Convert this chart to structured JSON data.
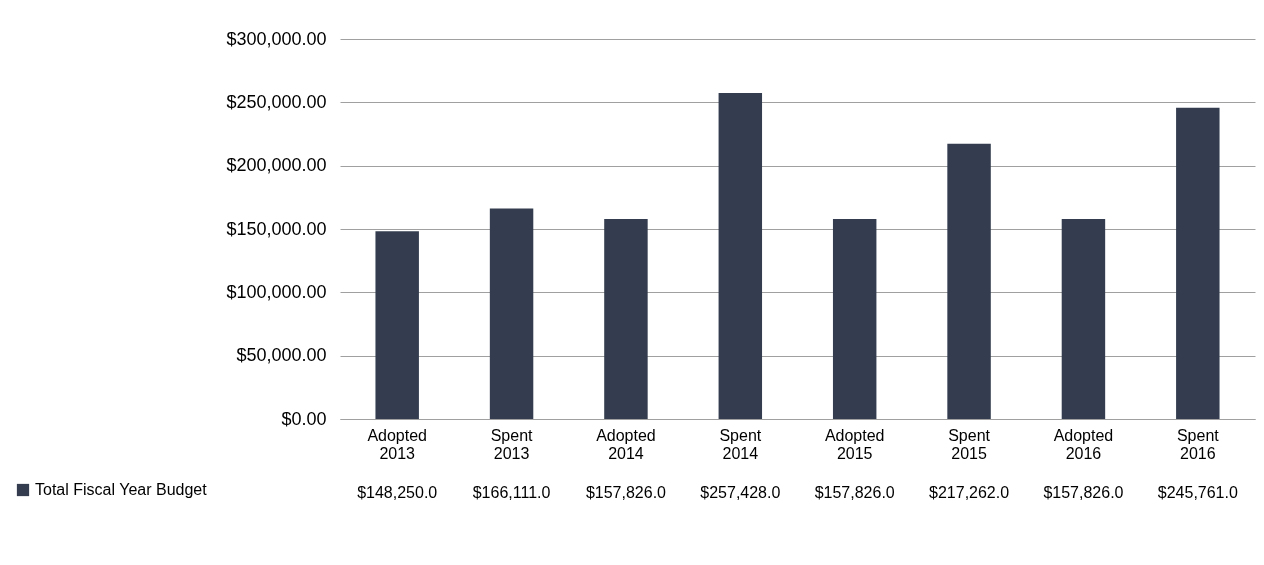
{
  "chart_data": {
    "type": "bar",
    "categories": [
      "Adopted 2013",
      "Spent 2013",
      "Adopted 2014",
      "Spent 2014",
      "Adopted 2015",
      "Spent 2015",
      "Adopted 2016",
      "Spent 2016"
    ],
    "series": [
      {
        "name": "Total Fiscal Year Budget",
        "color": "#333d4f",
        "values": [
          148250,
          166111,
          157826,
          257428,
          157826,
          217262,
          157826,
          245761
        ],
        "value_labels": [
          "$148,250.0",
          "$166,111.0",
          "$157,826.0",
          "$257,428.0",
          "$157,826.0",
          "$217,262.0",
          "$157,826.0",
          "$245,761.0"
        ]
      }
    ],
    "ylim": [
      0,
      300000
    ],
    "yticks": [
      {
        "value": 0,
        "label": "$0.00"
      },
      {
        "value": 50000,
        "label": "$50,000.00"
      },
      {
        "value": 100000,
        "label": "$100,000.00"
      },
      {
        "value": 150000,
        "label": "$150,000.00"
      },
      {
        "value": 200000,
        "label": "$200,000.00"
      },
      {
        "value": 250000,
        "label": "$250,000.00"
      },
      {
        "value": 300000,
        "label": "$300,000.00"
      }
    ],
    "grid": "y",
    "legend": "bottom left"
  }
}
